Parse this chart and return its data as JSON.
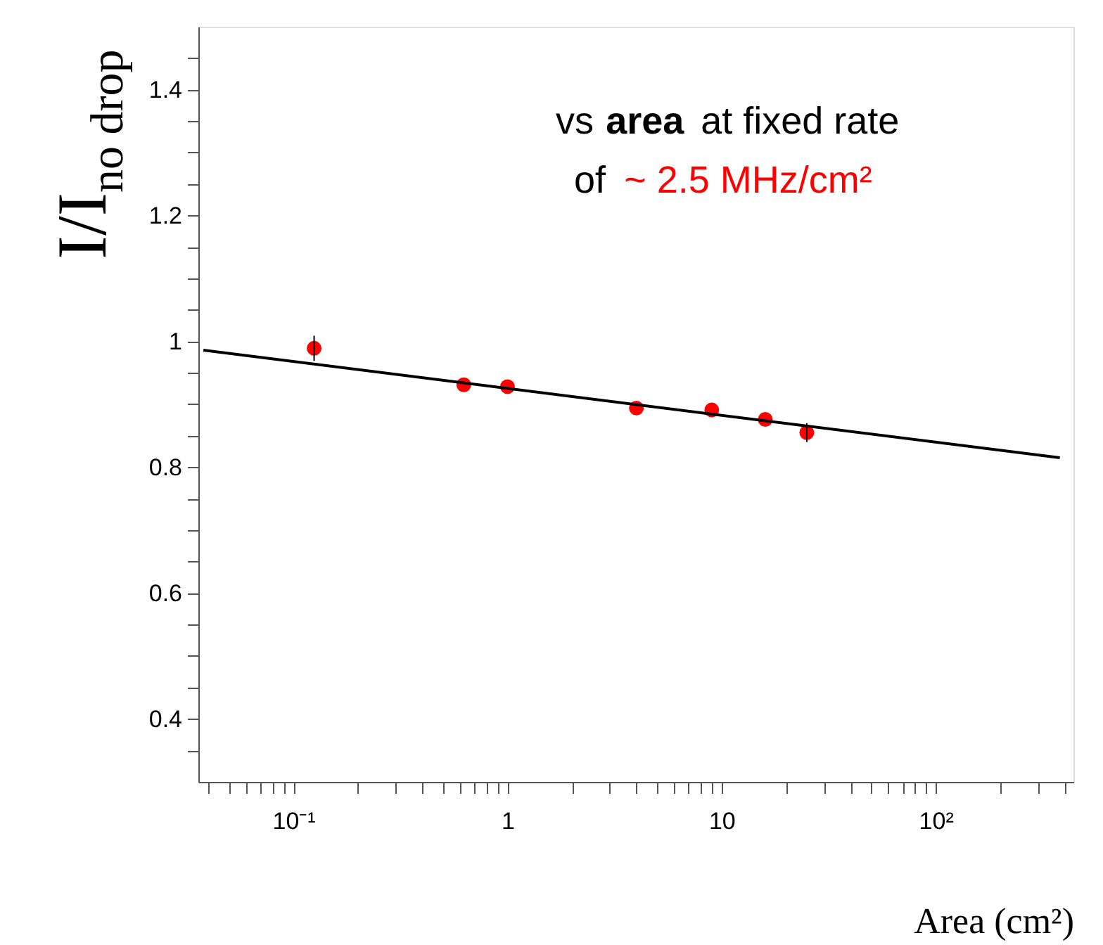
{
  "chart_data": {
    "type": "scatter",
    "xlabel": "Area (cm²)",
    "ylabel": "I/I$_{no drop}$",
    "annotations": [
      "vs",
      "area",
      "at fixed rate",
      "of",
      "~ 2.5 MHz/cm²"
    ],
    "log": "x",
    "grid": false,
    "xlim": [
      0.036,
      440
    ],
    "ylim": [
      0.3,
      1.5
    ],
    "xticks": [
      {
        "value": 0.04,
        "label": null
      },
      {
        "value": 0.05,
        "label": null
      },
      {
        "value": 0.06,
        "label": null
      },
      {
        "value": 0.07,
        "label": null
      },
      {
        "value": 0.08,
        "label": null
      },
      {
        "value": 0.09,
        "label": null
      },
      {
        "value": 0.1,
        "label": "10⁻¹"
      },
      {
        "value": 0.2,
        "label": null
      },
      {
        "value": 0.3,
        "label": null
      },
      {
        "value": 0.4,
        "label": null
      },
      {
        "value": 0.5,
        "label": null
      },
      {
        "value": 0.6,
        "label": null
      },
      {
        "value": 0.7,
        "label": null
      },
      {
        "value": 0.8,
        "label": null
      },
      {
        "value": 0.9,
        "label": null
      },
      1,
      {
        "value": 2,
        "label": null
      },
      {
        "value": 3,
        "label": null
      },
      {
        "value": 4,
        "label": null
      },
      {
        "value": 5,
        "label": null
      },
      {
        "value": 6,
        "label": null
      },
      {
        "value": 7,
        "label": null
      },
      {
        "value": 8,
        "label": null
      },
      {
        "value": 9,
        "label": null
      },
      10,
      {
        "value": 20,
        "label": null
      },
      {
        "value": 30,
        "label": null
      },
      {
        "value": 40,
        "label": null
      },
      {
        "value": 50,
        "label": null
      },
      {
        "value": 60,
        "label": null
      },
      {
        "value": 70,
        "label": null
      },
      {
        "value": 80,
        "label": null
      },
      {
        "value": 90,
        "label": null
      },
      {
        "value": 100,
        "label": "10²"
      },
      {
        "value": 200,
        "label": null
      },
      {
        "value": 300,
        "label": null
      },
      {
        "value": 400,
        "label": null
      }
    ],
    "yticks": [
      {
        "value": 0.35,
        "label": null
      },
      0.4,
      {
        "value": 0.45,
        "label": null
      },
      {
        "value": 0.5,
        "label": null
      },
      {
        "value": 0.55,
        "label": null
      },
      0.6,
      {
        "value": 0.65,
        "label": null
      },
      {
        "value": 0.7,
        "label": null
      },
      {
        "value": 0.75,
        "label": null
      },
      0.8,
      {
        "value": 0.85,
        "label": null
      },
      {
        "value": 0.9,
        "label": null
      },
      {
        "value": 0.95,
        "label": null
      },
      1,
      {
        "value": 1.05,
        "label": null
      },
      {
        "value": 1.1,
        "label": null
      },
      {
        "value": 1.15,
        "label": null
      },
      1.2,
      {
        "value": 1.25,
        "label": null
      },
      {
        "value": 1.3,
        "label": null
      },
      {
        "value": 1.35,
        "label": null
      },
      1.4,
      {
        "value": 1.45,
        "label": null
      }
    ],
    "series": [
      {
        "color": "#ff0000",
        "marker": "circle",
        "x": [
          0.125,
          0.625,
          1,
          4,
          9,
          16,
          25
        ],
        "values": [
          0.989,
          0.931,
          0.928,
          0.894,
          0.891,
          0.876,
          0.855
        ],
        "errors": [
          0.02,
          null,
          null,
          null,
          null,
          null,
          0.015
        ]
      },
      {
        "type": "line",
        "color": "#000000",
        "marker": "none",
        "x": [
          0.038,
          380
        ],
        "values": [
          0.986,
          0.815
        ]
      }
    ]
  }
}
